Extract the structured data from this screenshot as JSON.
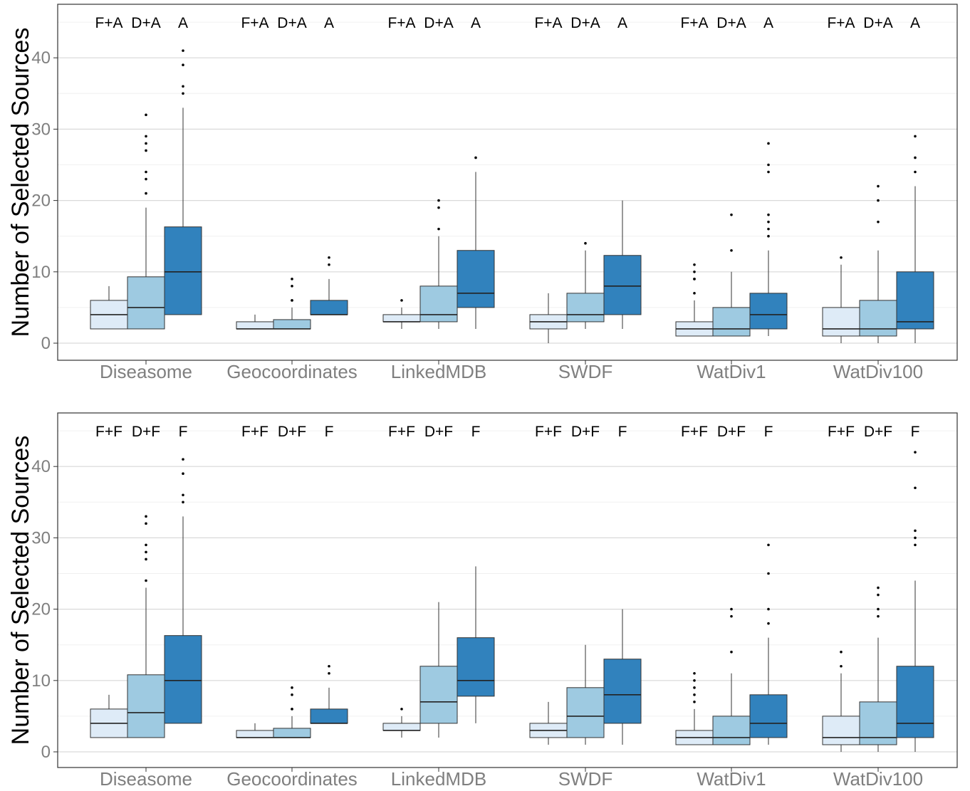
{
  "chart_data": [
    {
      "type": "boxplot",
      "ylabel": "Number of Selected Sources",
      "ylim": [
        -2,
        47
      ],
      "yticks": [
        0,
        10,
        20,
        30,
        40
      ],
      "grid": true,
      "categories": [
        "Diseasome",
        "Geocoordinates",
        "LinkedMDB",
        "SWDF",
        "WatDiv1",
        "WatDiv100"
      ],
      "series": [
        {
          "name": "F+A",
          "color": "#deebf7",
          "boxes": [
            {
              "low": 2,
              "q1": 2,
              "median": 4,
              "q3": 6,
              "high": 8,
              "outliers": []
            },
            {
              "low": 2,
              "q1": 2,
              "median": 2,
              "q3": 3,
              "high": 4,
              "outliers": []
            },
            {
              "low": 2,
              "q1": 3,
              "median": 3,
              "q3": 4,
              "high": 5,
              "outliers": [
                6
              ]
            },
            {
              "low": 0,
              "q1": 2,
              "median": 3,
              "q3": 4,
              "high": 7,
              "outliers": []
            },
            {
              "low": 1,
              "q1": 1,
              "median": 2,
              "q3": 3,
              "high": 6,
              "outliers": [
                7,
                9,
                9,
                10,
                11
              ]
            },
            {
              "low": 0,
              "q1": 1,
              "median": 2,
              "q3": 5,
              "high": 11,
              "outliers": [
                12
              ]
            }
          ]
        },
        {
          "name": "D+A",
          "color": "#9ecae1",
          "boxes": [
            {
              "low": 2,
              "q1": 2,
              "median": 5,
              "q3": 9.3,
              "high": 19,
              "outliers": [
                21,
                23,
                24,
                27,
                28,
                29,
                32
              ]
            },
            {
              "low": 2,
              "q1": 2,
              "median": 2,
              "q3": 3.3,
              "high": 5,
              "outliers": [
                6,
                6,
                8,
                9
              ]
            },
            {
              "low": 2,
              "q1": 3,
              "median": 4,
              "q3": 8,
              "high": 15,
              "outliers": [
                16,
                19,
                20
              ]
            },
            {
              "low": 2,
              "q1": 3,
              "median": 4,
              "q3": 7,
              "high": 13,
              "outliers": [
                14
              ]
            },
            {
              "low": 1,
              "q1": 1,
              "median": 2,
              "q3": 5,
              "high": 10,
              "outliers": [
                13,
                18
              ]
            },
            {
              "low": 0,
              "q1": 1,
              "median": 2,
              "q3": 6,
              "high": 13,
              "outliers": [
                17,
                20,
                22
              ]
            }
          ]
        },
        {
          "name": "A",
          "color": "#3182bd",
          "boxes": [
            {
              "low": 4,
              "q1": 4,
              "median": 10,
              "q3": 16.3,
              "high": 33,
              "outliers": [
                35,
                36,
                39,
                41
              ]
            },
            {
              "low": 4,
              "q1": 4,
              "median": 4,
              "q3": 6,
              "high": 9,
              "outliers": [
                11,
                12
              ]
            },
            {
              "low": 2,
              "q1": 5,
              "median": 7,
              "q3": 13,
              "high": 24,
              "outliers": [
                26
              ]
            },
            {
              "low": 2,
              "q1": 4,
              "median": 8,
              "q3": 12.3,
              "high": 20,
              "outliers": []
            },
            {
              "low": 1,
              "q1": 2,
              "median": 4,
              "q3": 7,
              "high": 13,
              "outliers": [
                15,
                16,
                17,
                18,
                24,
                25,
                28
              ]
            },
            {
              "low": 0,
              "q1": 2,
              "median": 3,
              "q3": 10,
              "high": 22,
              "outliers": [
                24,
                26,
                29
              ]
            }
          ]
        }
      ]
    },
    {
      "type": "boxplot",
      "ylabel": "Number of Selected Sources",
      "ylim": [
        -2,
        47
      ],
      "yticks": [
        0,
        10,
        20,
        30,
        40
      ],
      "grid": true,
      "categories": [
        "Diseasome",
        "Geocoordinates",
        "LinkedMDB",
        "SWDF",
        "WatDiv1",
        "WatDiv100"
      ],
      "series": [
        {
          "name": "F+F",
          "color": "#deebf7",
          "boxes": [
            {
              "low": 2,
              "q1": 2,
              "median": 4,
              "q3": 6,
              "high": 8,
              "outliers": []
            },
            {
              "low": 2,
              "q1": 2,
              "median": 2,
              "q3": 3,
              "high": 4,
              "outliers": []
            },
            {
              "low": 2,
              "q1": 3,
              "median": 3,
              "q3": 4,
              "high": 5,
              "outliers": [
                6
              ]
            },
            {
              "low": 1,
              "q1": 2,
              "median": 3,
              "q3": 4,
              "high": 7,
              "outliers": []
            },
            {
              "low": 1,
              "q1": 1,
              "median": 2,
              "q3": 3,
              "high": 6,
              "outliers": [
                7,
                8,
                9,
                10,
                11
              ]
            },
            {
              "low": 0,
              "q1": 1,
              "median": 2,
              "q3": 5,
              "high": 11,
              "outliers": [
                12,
                14
              ]
            }
          ]
        },
        {
          "name": "D+F",
          "color": "#9ecae1",
          "boxes": [
            {
              "low": 2,
              "q1": 2,
              "median": 5.5,
              "q3": 10.8,
              "high": 23,
              "outliers": [
                24,
                27,
                28,
                29,
                32,
                33
              ]
            },
            {
              "low": 2,
              "q1": 2,
              "median": 2,
              "q3": 3.3,
              "high": 5,
              "outliers": [
                6,
                6,
                8,
                9
              ]
            },
            {
              "low": 2,
              "q1": 4,
              "median": 7,
              "q3": 12,
              "high": 21,
              "outliers": []
            },
            {
              "low": 1,
              "q1": 2,
              "median": 5,
              "q3": 9,
              "high": 15,
              "outliers": []
            },
            {
              "low": 1,
              "q1": 1,
              "median": 2,
              "q3": 5,
              "high": 11,
              "outliers": [
                14,
                19,
                20
              ]
            },
            {
              "low": 0,
              "q1": 1,
              "median": 2,
              "q3": 7,
              "high": 16,
              "outliers": [
                19,
                20,
                22,
                23
              ]
            }
          ]
        },
        {
          "name": "F",
          "color": "#3182bd",
          "boxes": [
            {
              "low": 4,
              "q1": 4,
              "median": 10,
              "q3": 16.3,
              "high": 33,
              "outliers": [
                35,
                36,
                39,
                41
              ]
            },
            {
              "low": 4,
              "q1": 4,
              "median": 4,
              "q3": 6,
              "high": 9,
              "outliers": [
                11,
                12
              ]
            },
            {
              "low": 4,
              "q1": 7.8,
              "median": 10,
              "q3": 16,
              "high": 26,
              "outliers": []
            },
            {
              "low": 1,
              "q1": 4,
              "median": 8,
              "q3": 13,
              "high": 20,
              "outliers": []
            },
            {
              "low": 1,
              "q1": 2,
              "median": 4,
              "q3": 8,
              "high": 16,
              "outliers": [
                18,
                20,
                25,
                29
              ]
            },
            {
              "low": 0,
              "q1": 2,
              "median": 4,
              "q3": 12,
              "high": 24,
              "outliers": [
                29,
                30,
                31,
                37,
                42
              ]
            }
          ]
        }
      ]
    }
  ]
}
